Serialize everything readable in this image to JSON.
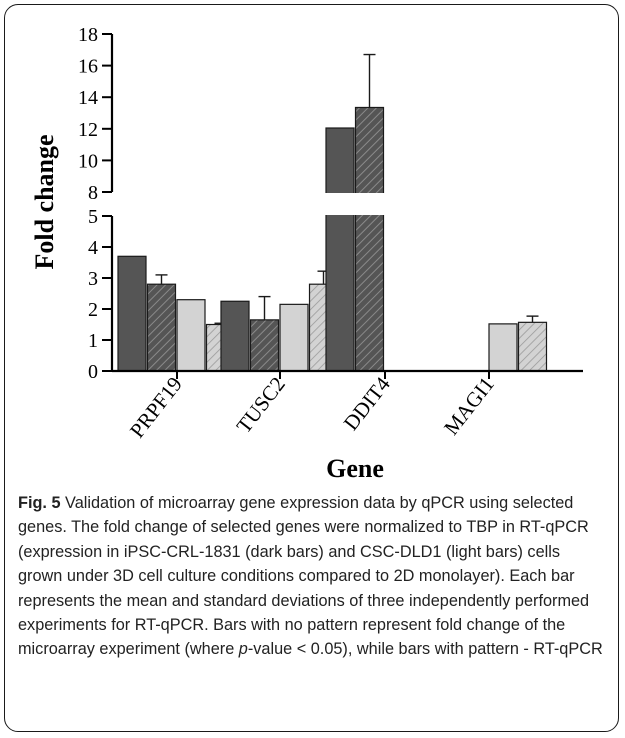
{
  "chart_data": {
    "type": "bar",
    "xlabel": "Gene",
    "ylabel": "Fold change",
    "y_axis_break": {
      "lower_range": [
        0,
        5
      ],
      "upper_range": [
        8,
        18
      ]
    },
    "lower_ticks": [
      "0",
      "1",
      "2",
      "3",
      "4",
      "5"
    ],
    "upper_ticks": [
      "8",
      "10",
      "12",
      "14",
      "16",
      "18"
    ],
    "categories": [
      "PRPF19",
      "TUSC2",
      "DDIT4",
      "MAGI1"
    ],
    "series": [
      {
        "key": "a",
        "color": "#555555",
        "hatched": false,
        "values": [
          3.7,
          2.25,
          12.05,
          null
        ],
        "errors": [
          null,
          null,
          null,
          null
        ]
      },
      {
        "key": "b",
        "color": "#555555",
        "hatched": true,
        "values": [
          2.8,
          1.65,
          13.35,
          null
        ],
        "errors": [
          0.3,
          0.75,
          3.35,
          null
        ]
      },
      {
        "key": "c",
        "color": "#d3d3d3",
        "hatched": false,
        "values": [
          2.3,
          2.15,
          null,
          1.52
        ],
        "errors": [
          null,
          null,
          null,
          null
        ]
      },
      {
        "key": "d",
        "color": "#d3d3d3",
        "hatched": true,
        "values": [
          1.5,
          2.8,
          null,
          1.57
        ],
        "errors": [
          0.04,
          0.42,
          null,
          0.2
        ]
      }
    ]
  },
  "caption": {
    "fig_label": "Fig. 5",
    "text_part1": " Validation of microarray gene expression data by qPCR using selected genes. The fold change of selected genes were normalized to TBP in RT-qPCR (expression in iPSC-CRL-1831 (dark bars) and CSC-DLD1 (light bars) cells grown under 3D cell culture conditions compared to 2D monolayer). Each bar represents the mean and standard deviations of three independently performed experiments for RT-qPCR. Bars with no pattern represent fold change of the microarray experiment (where ",
    "p_italic": "p",
    "text_part2": "-value < 0.05), while bars with pattern - RT-qPCR"
  }
}
